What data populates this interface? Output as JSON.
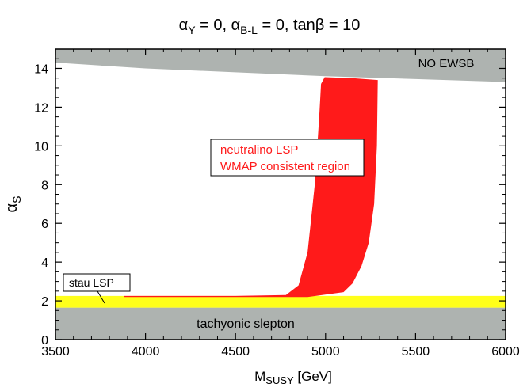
{
  "chart_data": {
    "type": "area",
    "title": {
      "alpha": "α",
      "y_sub": "Y",
      "y_eq": " = 0,  ",
      "bl_sub": "B-L",
      "bl_eq": " = 0,  tanβ = 10"
    },
    "xlabel": {
      "main": "M",
      "sub": "SUSY",
      "unit": " [GeV]"
    },
    "ylabel": {
      "main": "α",
      "sub": "S"
    },
    "xlim": [
      3500,
      6000
    ],
    "ylim": [
      0,
      15
    ],
    "x_ticks": [
      3500,
      4000,
      4500,
      5000,
      5500,
      6000
    ],
    "y_ticks": [
      0,
      2,
      4,
      6,
      8,
      10,
      12,
      14
    ],
    "regions": [
      {
        "name": "no-ewsb-region",
        "label": "NO EWSB",
        "color": "#aeb3b0",
        "points": [
          [
            3500,
            15
          ],
          [
            6000,
            15
          ],
          [
            6000,
            13.3
          ],
          [
            5500,
            13.45
          ],
          [
            5000,
            13.6
          ],
          [
            4500,
            13.8
          ],
          [
            4000,
            14.0
          ],
          [
            3500,
            14.3
          ]
        ]
      },
      {
        "name": "tachyonic-slepton-region",
        "label": "tachyonic slepton",
        "color": "#aeb3b0",
        "points": [
          [
            3500,
            0
          ],
          [
            6000,
            0
          ],
          [
            6000,
            1.65
          ],
          [
            3500,
            1.65
          ]
        ]
      },
      {
        "name": "stau-lsp-region",
        "label": "stau LSP",
        "color": "#ffff1a",
        "points": [
          [
            3500,
            1.65
          ],
          [
            6000,
            1.65
          ],
          [
            6000,
            2.25
          ],
          [
            3500,
            2.25
          ]
        ]
      },
      {
        "name": "wmap-region",
        "label_lines": [
          "neutralino LSP",
          "WMAP consistent region"
        ],
        "color": "#ff1a1a",
        "points": [
          [
            3880,
            2.25
          ],
          [
            4500,
            2.25
          ],
          [
            4780,
            2.3
          ],
          [
            4850,
            2.8
          ],
          [
            4900,
            4.5
          ],
          [
            4940,
            8.0
          ],
          [
            4965,
            11.5
          ],
          [
            4975,
            13.2
          ],
          [
            4995,
            13.55
          ],
          [
            5150,
            13.5
          ],
          [
            5290,
            13.4
          ],
          [
            5285,
            10.0
          ],
          [
            5270,
            7.0
          ],
          [
            5240,
            5.0
          ],
          [
            5200,
            3.8
          ],
          [
            5150,
            2.9
          ],
          [
            5100,
            2.45
          ],
          [
            4900,
            2.2
          ],
          [
            3880,
            2.2
          ]
        ]
      }
    ]
  }
}
